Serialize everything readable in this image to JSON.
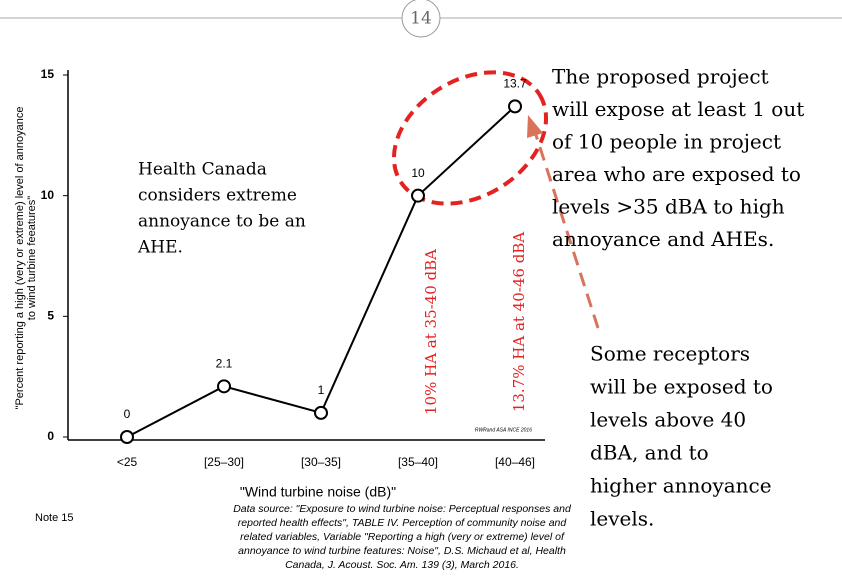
{
  "chart_data": {
    "type": "line",
    "categories": [
      "<25",
      "[25–30]",
      "[30–35]",
      "[35–40]",
      "[40–46]"
    ],
    "series": [
      {
        "name": "Percent reporting high annoyance",
        "color": "#000000",
        "values": [
          0,
          2.1,
          1,
          10,
          13.7
        ]
      }
    ],
    "ylim": [
      0,
      15
    ],
    "yticks": [
      0,
      5,
      10,
      15
    ],
    "y_label": [
      "\"Percent reporting a high (very or extreme) level of annoyance",
      "to wind turbine feeatures\""
    ],
    "x_label": "\"Wind turbine noise (dB)\"",
    "bar_annotations": [
      "10% HA at 35-40 dBA",
      "13.7% HA at 40-46 dBA"
    ],
    "credit": "RWRand ASA INCE 2016",
    "inset_note": [
      "Health Canada",
      "considers extreme",
      "annoyance to be an",
      "AHE."
    ]
  },
  "slide": {
    "page_number": "14",
    "note": "Note 15",
    "callout_1": [
      "The proposed project",
      "will expose at least 1 out",
      "of 10 people in project",
      "area who are exposed to",
      "levels >35 dBA to high",
      "annoyance and AHEs."
    ],
    "callout_2": [
      "Some receptors",
      "will be exposed to",
      "levels above 40",
      "dBA, and to",
      "higher annoyance",
      "levels."
    ],
    "source": [
      "Data source:  \"Exposure to wind turbine noise: Perceptual responses and",
      "reported health effects\", TABLE IV. Perception of community noise and",
      "related variables, Variable \"Reporting a high (very or extreme) level of",
      "annoyance to wind turbine features: Noise\", D.S. Michaud et al, Health",
      "Canada, J. Acoust. Soc. Am. 139 (3), March 2016."
    ]
  }
}
